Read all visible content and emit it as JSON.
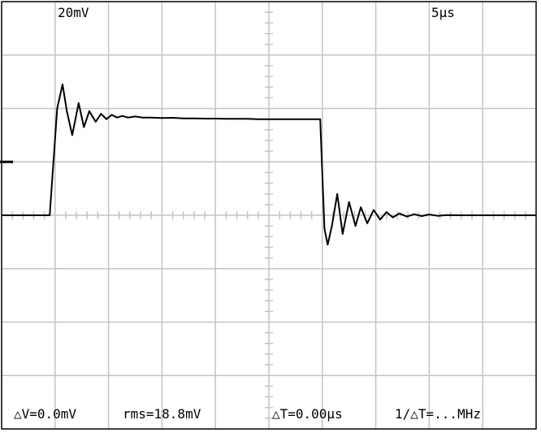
{
  "header": {
    "volts_per_div": "20mV",
    "time_per_div": "5µs"
  },
  "readouts": {
    "delta_v": "△V=0.0mV",
    "rms": "rms=18.8mV",
    "delta_t": "△T=0.00µs",
    "inv_delta_t": "1/△T=...MHz"
  },
  "colors": {
    "background": "#ffffff",
    "grid": "#c4c4c4",
    "trace": "#000000"
  },
  "chart_data": {
    "type": "line",
    "title": "",
    "xlabel": "",
    "ylabel": "",
    "x_unit": "µs",
    "y_unit": "mV",
    "xlim": [
      0,
      50
    ],
    "ylim": [
      -80,
      80
    ],
    "grid": true,
    "ground_marker_mV": 20,
    "series": [
      {
        "x": [
          0,
          4.5,
          5.2,
          5.7,
          6.1,
          6.6,
          7.2,
          7.7,
          8.2,
          8.8,
          9.3,
          9.8,
          10.3,
          10.8,
          11.3,
          11.8,
          12.5,
          13.2,
          14,
          15,
          16,
          17,
          18,
          19,
          20,
          21,
          22,
          23,
          24,
          25,
          26,
          27,
          28,
          29,
          29.8,
          30.2,
          30.5,
          30.9,
          31.4,
          31.9,
          32.5,
          33.1,
          33.6,
          34.2,
          34.8,
          35.4,
          36,
          36.6,
          37.2,
          37.9,
          38.6,
          39.3,
          40,
          40.8,
          41.6,
          43,
          45,
          50
        ],
        "y": [
          0,
          0,
          40,
          49,
          39,
          30,
          42,
          33,
          39,
          35,
          38,
          36,
          37.6,
          36.6,
          37.2,
          36.6,
          37,
          36.6,
          36.6,
          36.4,
          36.5,
          36.3,
          36.3,
          36.2,
          36.2,
          36.1,
          36.1,
          36.1,
          36,
          36,
          36,
          36,
          36,
          36,
          36,
          -5,
          -11,
          -4,
          8,
          -7,
          5,
          -4,
          3,
          -3,
          2,
          -1.6,
          1.2,
          -0.8,
          0.7,
          -0.5,
          0.4,
          -0.3,
          0.3,
          -0.2,
          0.1,
          0,
          0,
          0
        ]
      }
    ]
  }
}
